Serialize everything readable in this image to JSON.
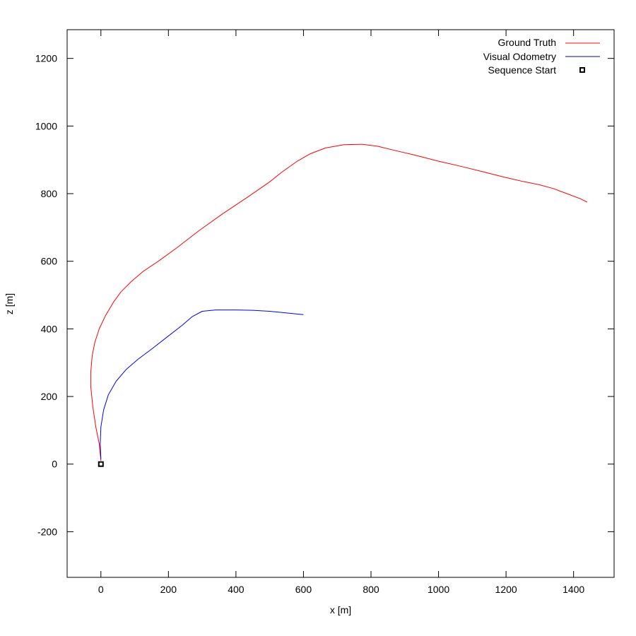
{
  "chart_data": {
    "type": "line",
    "xlabel": "x [m]",
    "ylabel": "z [m]",
    "xlim": [
      -100,
      1520
    ],
    "ylim": [
      -335,
      1285
    ],
    "xticks": [
      0,
      200,
      400,
      600,
      800,
      1000,
      1200,
      1400
    ],
    "yticks": [
      -200,
      0,
      200,
      400,
      600,
      800,
      1000,
      1200
    ],
    "grid": false,
    "legend_position": "top-right",
    "series": [
      {
        "name": "Ground Truth",
        "color": "#ff0000",
        "x": [
          0,
          -5,
          -15,
          -24,
          -30,
          -30,
          -26,
          -18,
          -5,
          14,
          38,
          60,
          90,
          125,
          170,
          225,
          290,
          360,
          435,
          500,
          535,
          580,
          620,
          665,
          720,
          775,
          820,
          870,
          930,
          1000,
          1070,
          1130,
          1190,
          1250,
          1300,
          1340,
          1380,
          1420,
          1440
        ],
        "y": [
          10,
          60,
          110,
          170,
          230,
          270,
          320,
          360,
          400,
          440,
          480,
          510,
          540,
          570,
          600,
          640,
          690,
          740,
          790,
          835,
          863,
          895,
          918,
          935,
          945,
          946,
          940,
          928,
          914,
          896,
          880,
          865,
          850,
          836,
          826,
          815,
          800,
          785,
          775
        ]
      },
      {
        "name": "Visual Odometry",
        "color": "#0000ff",
        "x": [
          0,
          -2,
          0,
          8,
          22,
          45,
          75,
          110,
          150,
          195,
          240,
          270,
          300,
          340,
          400,
          450,
          500,
          550,
          600
        ],
        "y": [
          15,
          60,
          110,
          160,
          205,
          245,
          280,
          310,
          340,
          375,
          410,
          436,
          452,
          456,
          456,
          455,
          452,
          447,
          442
        ]
      }
    ],
    "markers": [
      {
        "name": "Sequence Start",
        "x": 0,
        "y": 0,
        "color": "#000000"
      }
    ]
  }
}
